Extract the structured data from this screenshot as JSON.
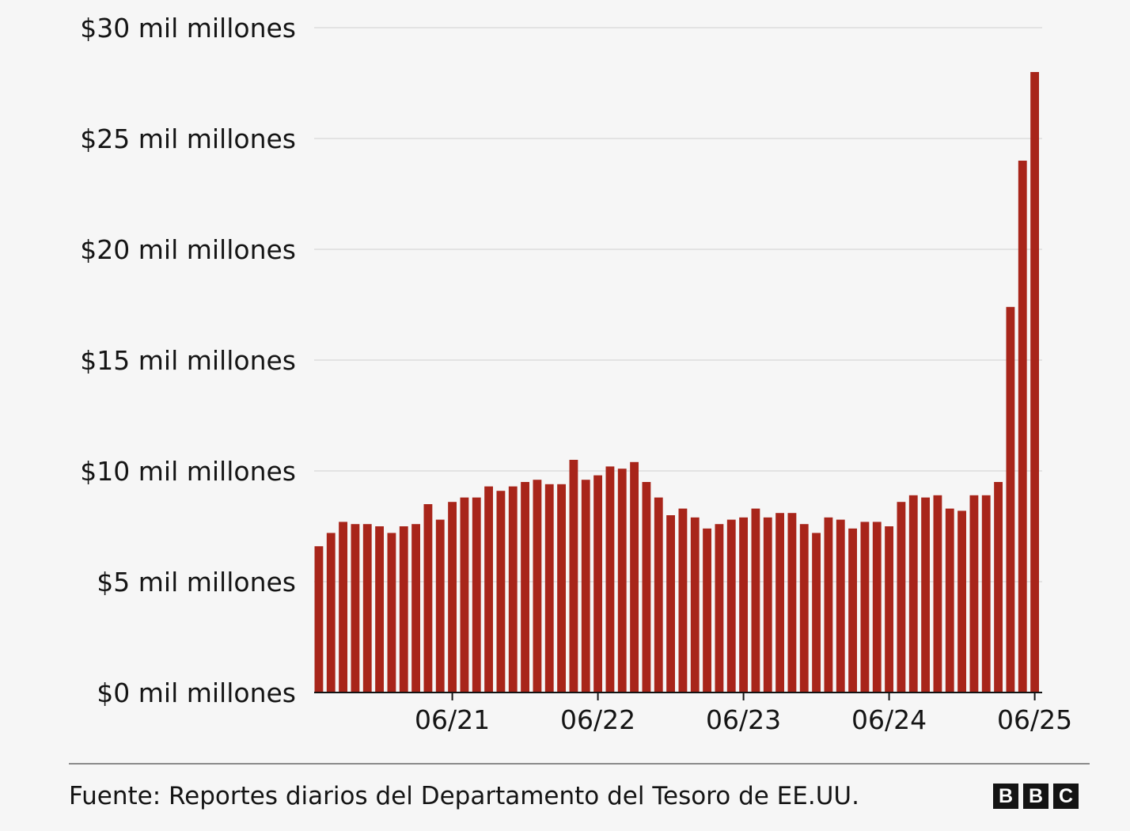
{
  "chart_data": {
    "type": "bar",
    "ylim": [
      0,
      30
    ],
    "y_ticks": [
      {
        "value": 0,
        "label": "$0 mil millones"
      },
      {
        "value": 5,
        "label": "$5 mil millones"
      },
      {
        "value": 10,
        "label": "$10 mil millones"
      },
      {
        "value": 15,
        "label": "$15 mil millones"
      },
      {
        "value": 20,
        "label": "$20 mil millones"
      },
      {
        "value": 25,
        "label": "$25 mil millones"
      },
      {
        "value": 30,
        "label": "$30 mil millones"
      }
    ],
    "x_ticks": [
      {
        "index": 11,
        "label": "06/21"
      },
      {
        "index": 23,
        "label": "06/22"
      },
      {
        "index": 35,
        "label": "06/23"
      },
      {
        "index": 47,
        "label": "06/24"
      },
      {
        "index": 59,
        "label": "06/25"
      }
    ],
    "values": [
      6.6,
      7.2,
      7.7,
      7.6,
      7.6,
      7.5,
      7.2,
      7.5,
      7.6,
      8.5,
      7.8,
      8.6,
      8.8,
      8.8,
      9.3,
      9.1,
      9.3,
      9.5,
      9.6,
      9.4,
      9.4,
      10.5,
      9.6,
      9.8,
      10.2,
      10.1,
      10.4,
      9.5,
      8.8,
      8.0,
      8.3,
      7.9,
      7.4,
      7.6,
      7.8,
      7.9,
      8.3,
      7.9,
      8.1,
      8.1,
      7.6,
      7.2,
      7.9,
      7.8,
      7.4,
      7.7,
      7.7,
      7.5,
      8.6,
      8.9,
      8.8,
      8.9,
      8.3,
      8.2,
      8.9,
      8.9,
      9.5,
      17.4,
      24.0,
      28.0
    ],
    "grid": true,
    "bar_color": "#a8251a"
  },
  "footer": {
    "source": "Fuente: Reportes diarios del Departamento del Tesoro de EE.UU.",
    "logo_letters": [
      "B",
      "B",
      "C"
    ]
  }
}
